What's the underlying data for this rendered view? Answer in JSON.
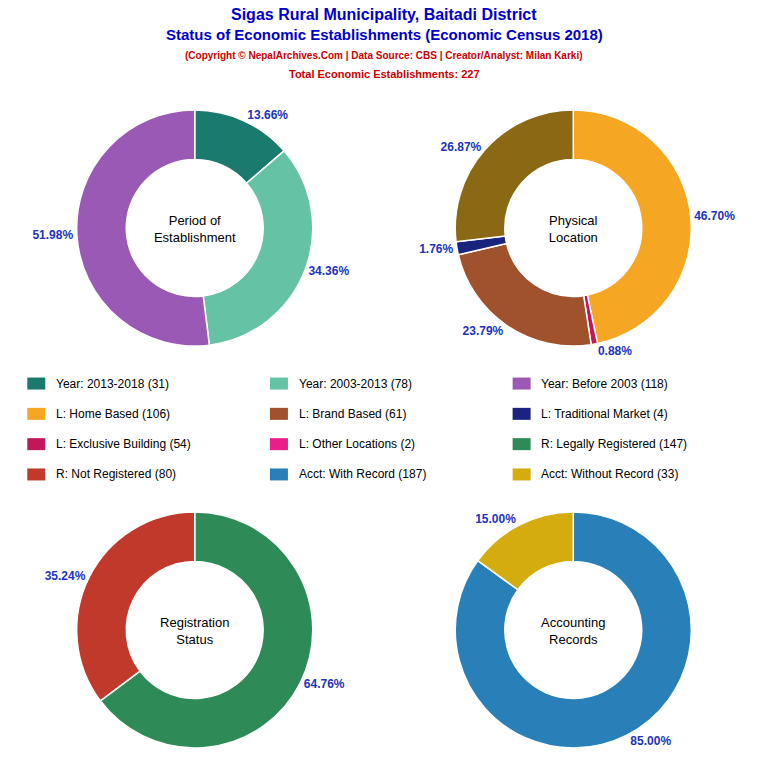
{
  "title": "Sigas Rural Municipality, Baitadi District\nStatus of Economic Establishments (Economic Census 2018)",
  "title_color": "#0000cc",
  "subtitle": "(Copyright © NepalArchives.Com | Data Source: CBS | Creator/Analyst: Milan Karki)\nTotal Economic Establishments: 227",
  "subtitle_color": "#cc0000",
  "data_label_color": "#2233bb",
  "legend_items": [
    {
      "label": "Year: 2013-2018 (31)",
      "color": "#1a7a6e"
    },
    {
      "label": "Year: 2003-2013 (78)",
      "color": "#66c2a5"
    },
    {
      "label": "Year: Before 2003 (118)",
      "color": "#9b59b6"
    },
    {
      "label": "L: Home Based (106)",
      "color": "#f5a623"
    },
    {
      "label": "L: Brand Based (61)",
      "color": "#a0522d"
    },
    {
      "label": "L: Traditional Market (4)",
      "color": "#1a237e"
    },
    {
      "label": "L: Exclusive Building (54)",
      "color": "#c2185b"
    },
    {
      "label": "L: Other Locations (2)",
      "color": "#e91e8c"
    },
    {
      "label": "R: Legally Registered (147)",
      "color": "#2e8b57"
    },
    {
      "label": "R: Not Registered (80)",
      "color": "#c0392b"
    },
    {
      "label": "Acct: With Record (187)",
      "color": "#2980b9"
    },
    {
      "label": "Acct: Without Record (33)",
      "color": "#d4ac0d"
    }
  ],
  "chart_data": [
    {
      "type": "pie",
      "title": "Period of\nEstablishment",
      "values": [
        13.66,
        34.36,
        51.98
      ],
      "value_labels": [
        "13.66%",
        "34.36%",
        "51.98%"
      ],
      "colors": [
        "#1a7a6e",
        "#66c2a5",
        "#9b59b6"
      ],
      "data_labels": true
    },
    {
      "type": "pie",
      "title": "Physical\nLocation",
      "values": [
        46.7,
        0.88,
        23.79,
        1.76,
        26.87
      ],
      "value_labels": [
        "46.70%",
        "0.88%",
        "23.79%",
        "1.76%",
        "26.87%"
      ],
      "colors": [
        "#f5a623",
        "#c2185b",
        "#a0522d",
        "#1a237e",
        "#8b6914"
      ],
      "data_labels": true
    },
    {
      "type": "pie",
      "title": "Registration\nStatus",
      "values": [
        64.76,
        35.24
      ],
      "value_labels": [
        "64.76%",
        "35.24%"
      ],
      "colors": [
        "#2e8b57",
        "#c0392b"
      ],
      "data_labels": true
    },
    {
      "type": "pie",
      "title": "Accounting\nRecords",
      "values": [
        85.0,
        15.0
      ],
      "value_labels": [
        "85.00%",
        "15.00%"
      ],
      "colors": [
        "#2980b9",
        "#d4ac0d"
      ],
      "data_labels": true
    }
  ]
}
